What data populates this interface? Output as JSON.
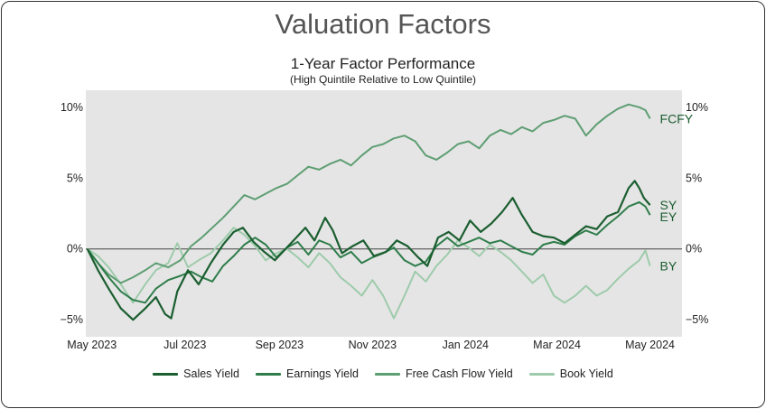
{
  "page": {
    "title": "Valuation Factors"
  },
  "chart_data": {
    "type": "line",
    "title": "1-Year Factor Performance",
    "subtitle": "(High Quintile Relative to Low Quintile)",
    "xlabel": "",
    "ylabel": "",
    "x_ticks": [
      "May 2023",
      "Jul 2023",
      "Sep 2023",
      "Nov 2023",
      "Jan 2024",
      "Mar 2024",
      "May 2024"
    ],
    "y_ticks_left": [
      "10%",
      "5%",
      "0%",
      "−5%"
    ],
    "y_ticks_right": [
      "10%",
      "5%",
      "0%",
      "−5%"
    ],
    "y_tick_values": [
      10,
      5,
      0,
      -5
    ],
    "ylim": [
      -6.2,
      11.2
    ],
    "xlim": [
      "2023-04-27",
      "2024-05-22"
    ],
    "grid": false,
    "background": "#e5e5e5",
    "zero_line": true,
    "legend_position": "bottom",
    "series": [
      {
        "name": "Sales Yield",
        "end_label": "SY",
        "color": "#1b5e30",
        "width": 2.2,
        "points": [
          [
            "2023-04-28",
            0
          ],
          [
            "2023-05-05",
            -1.5
          ],
          [
            "2023-05-12",
            -2.8
          ],
          [
            "2023-05-20",
            -4.2
          ],
          [
            "2023-05-28",
            -5.0
          ],
          [
            "2023-06-05",
            -4.2
          ],
          [
            "2023-06-12",
            -3.4
          ],
          [
            "2023-06-18",
            -4.6
          ],
          [
            "2023-06-22",
            -4.9
          ],
          [
            "2023-06-26",
            -3.0
          ],
          [
            "2023-07-03",
            -1.5
          ],
          [
            "2023-07-10",
            -2.5
          ],
          [
            "2023-07-18",
            -1.0
          ],
          [
            "2023-07-26",
            0.3
          ],
          [
            "2023-08-02",
            1.2
          ],
          [
            "2023-08-08",
            1.5
          ],
          [
            "2023-08-15",
            0.5
          ],
          [
            "2023-08-22",
            -0.2
          ],
          [
            "2023-08-29",
            -0.8
          ],
          [
            "2023-09-05",
            0
          ],
          [
            "2023-09-12",
            0.8
          ],
          [
            "2023-09-18",
            1.5
          ],
          [
            "2023-09-24",
            0.6
          ],
          [
            "2023-10-01",
            2.2
          ],
          [
            "2023-10-06",
            1.3
          ],
          [
            "2023-10-12",
            -0.3
          ],
          [
            "2023-10-19",
            0.2
          ],
          [
            "2023-10-26",
            0.6
          ],
          [
            "2023-11-02",
            -0.5
          ],
          [
            "2023-11-10",
            -0.2
          ],
          [
            "2023-11-17",
            0.6
          ],
          [
            "2023-11-24",
            0.2
          ],
          [
            "2023-12-01",
            -0.6
          ],
          [
            "2023-12-07",
            -1.2
          ],
          [
            "2023-12-14",
            0.8
          ],
          [
            "2023-12-21",
            1.2
          ],
          [
            "2023-12-28",
            0.6
          ],
          [
            "2024-01-04",
            2.0
          ],
          [
            "2024-01-11",
            1.2
          ],
          [
            "2024-01-18",
            1.8
          ],
          [
            "2024-01-25",
            2.6
          ],
          [
            "2024-02-01",
            3.6
          ],
          [
            "2024-02-07",
            2.4
          ],
          [
            "2024-02-14",
            1.2
          ],
          [
            "2024-02-21",
            0.9
          ],
          [
            "2024-02-28",
            0.8
          ],
          [
            "2024-03-06",
            0.4
          ],
          [
            "2024-03-13",
            1.0
          ],
          [
            "2024-03-20",
            1.6
          ],
          [
            "2024-03-27",
            1.4
          ],
          [
            "2024-04-03",
            2.3
          ],
          [
            "2024-04-10",
            2.6
          ],
          [
            "2024-04-17",
            4.3
          ],
          [
            "2024-04-21",
            4.8
          ],
          [
            "2024-04-24",
            4.3
          ],
          [
            "2024-04-27",
            3.6
          ],
          [
            "2024-05-01",
            3.1
          ]
        ]
      },
      {
        "name": "Earnings Yield",
        "end_label": "EY",
        "color": "#2e7d4a",
        "width": 2.0,
        "points": [
          [
            "2023-04-28",
            0
          ],
          [
            "2023-05-05",
            -1.0
          ],
          [
            "2023-05-12",
            -2.0
          ],
          [
            "2023-05-20",
            -3.0
          ],
          [
            "2023-05-28",
            -3.6
          ],
          [
            "2023-06-05",
            -3.8
          ],
          [
            "2023-06-12",
            -2.8
          ],
          [
            "2023-06-20",
            -2.2
          ],
          [
            "2023-06-28",
            -1.9
          ],
          [
            "2023-07-05",
            -1.6
          ],
          [
            "2023-07-12",
            -2.0
          ],
          [
            "2023-07-19",
            -2.3
          ],
          [
            "2023-07-26",
            -1.2
          ],
          [
            "2023-08-02",
            -0.5
          ],
          [
            "2023-08-09",
            0.3
          ],
          [
            "2023-08-16",
            0.8
          ],
          [
            "2023-08-23",
            0.3
          ],
          [
            "2023-08-30",
            -0.6
          ],
          [
            "2023-09-06",
            0.1
          ],
          [
            "2023-09-13",
            0.5
          ],
          [
            "2023-09-20",
            -0.4
          ],
          [
            "2023-09-27",
            0.6
          ],
          [
            "2023-10-04",
            0.3
          ],
          [
            "2023-10-11",
            -0.6
          ],
          [
            "2023-10-18",
            -0.2
          ],
          [
            "2023-10-25",
            -1.0
          ],
          [
            "2023-11-01",
            -0.6
          ],
          [
            "2023-11-08",
            -0.3
          ],
          [
            "2023-11-15",
            0.1
          ],
          [
            "2023-11-22",
            -0.8
          ],
          [
            "2023-11-29",
            -1.2
          ],
          [
            "2023-12-06",
            -0.9
          ],
          [
            "2023-12-13",
            0.2
          ],
          [
            "2023-12-20",
            0.8
          ],
          [
            "2023-12-27",
            0.2
          ],
          [
            "2024-01-03",
            0.5
          ],
          [
            "2024-01-10",
            0.8
          ],
          [
            "2024-01-17",
            0.4
          ],
          [
            "2024-01-24",
            0.6
          ],
          [
            "2024-01-31",
            0.2
          ],
          [
            "2024-02-07",
            -0.2
          ],
          [
            "2024-02-14",
            -0.4
          ],
          [
            "2024-02-21",
            0.3
          ],
          [
            "2024-02-28",
            0.5
          ],
          [
            "2024-03-06",
            0.3
          ],
          [
            "2024-03-13",
            0.9
          ],
          [
            "2024-03-20",
            1.3
          ],
          [
            "2024-03-27",
            1.0
          ],
          [
            "2024-04-03",
            1.7
          ],
          [
            "2024-04-10",
            2.3
          ],
          [
            "2024-04-17",
            3.0
          ],
          [
            "2024-04-24",
            3.3
          ],
          [
            "2024-04-28",
            3.0
          ],
          [
            "2024-05-01",
            2.4
          ]
        ]
      },
      {
        "name": "Free Cash Flow Yield",
        "end_label": "FCFY",
        "color": "#5e9e73",
        "width": 2.0,
        "points": [
          [
            "2023-04-28",
            0
          ],
          [
            "2023-05-05",
            -1.0
          ],
          [
            "2023-05-12",
            -1.8
          ],
          [
            "2023-05-20",
            -2.4
          ],
          [
            "2023-05-28",
            -2.0
          ],
          [
            "2023-06-05",
            -1.5
          ],
          [
            "2023-06-12",
            -1.0
          ],
          [
            "2023-06-20",
            -1.3
          ],
          [
            "2023-06-28",
            -0.8
          ],
          [
            "2023-07-05",
            0.2
          ],
          [
            "2023-07-12",
            0.8
          ],
          [
            "2023-07-19",
            1.5
          ],
          [
            "2023-07-26",
            2.2
          ],
          [
            "2023-08-02",
            3.0
          ],
          [
            "2023-08-09",
            3.8
          ],
          [
            "2023-08-16",
            3.5
          ],
          [
            "2023-08-23",
            3.9
          ],
          [
            "2023-08-30",
            4.3
          ],
          [
            "2023-09-06",
            4.6
          ],
          [
            "2023-09-13",
            5.2
          ],
          [
            "2023-09-20",
            5.8
          ],
          [
            "2023-09-27",
            5.6
          ],
          [
            "2023-10-04",
            6.0
          ],
          [
            "2023-10-11",
            6.3
          ],
          [
            "2023-10-18",
            5.9
          ],
          [
            "2023-10-25",
            6.6
          ],
          [
            "2023-11-01",
            7.2
          ],
          [
            "2023-11-08",
            7.4
          ],
          [
            "2023-11-15",
            7.8
          ],
          [
            "2023-11-22",
            8.0
          ],
          [
            "2023-11-29",
            7.6
          ],
          [
            "2023-12-06",
            6.6
          ],
          [
            "2023-12-13",
            6.3
          ],
          [
            "2023-12-20",
            6.8
          ],
          [
            "2023-12-27",
            7.4
          ],
          [
            "2024-01-03",
            7.6
          ],
          [
            "2024-01-10",
            7.1
          ],
          [
            "2024-01-17",
            8.0
          ],
          [
            "2024-01-24",
            8.4
          ],
          [
            "2024-01-31",
            8.1
          ],
          [
            "2024-02-07",
            8.6
          ],
          [
            "2024-02-14",
            8.3
          ],
          [
            "2024-02-21",
            8.9
          ],
          [
            "2024-02-28",
            9.1
          ],
          [
            "2024-03-06",
            9.4
          ],
          [
            "2024-03-13",
            9.2
          ],
          [
            "2024-03-20",
            8.0
          ],
          [
            "2024-03-27",
            8.8
          ],
          [
            "2024-04-03",
            9.4
          ],
          [
            "2024-04-10",
            9.9
          ],
          [
            "2024-04-17",
            10.2
          ],
          [
            "2024-04-24",
            10.0
          ],
          [
            "2024-04-28",
            9.8
          ],
          [
            "2024-05-01",
            9.2
          ]
        ]
      },
      {
        "name": "Book Yield",
        "end_label": "BY",
        "color": "#9ecbab",
        "width": 2.0,
        "points": [
          [
            "2023-04-28",
            0
          ],
          [
            "2023-05-05",
            -0.5
          ],
          [
            "2023-05-12",
            -1.3
          ],
          [
            "2023-05-20",
            -2.5
          ],
          [
            "2023-05-28",
            -3.8
          ],
          [
            "2023-06-05",
            -2.5
          ],
          [
            "2023-06-12",
            -1.5
          ],
          [
            "2023-06-20",
            -1.0
          ],
          [
            "2023-06-26",
            0.4
          ],
          [
            "2023-07-03",
            -1.3
          ],
          [
            "2023-07-10",
            -0.8
          ],
          [
            "2023-07-18",
            -0.3
          ],
          [
            "2023-07-26",
            0.6
          ],
          [
            "2023-08-02",
            1.5
          ],
          [
            "2023-08-09",
            1.0
          ],
          [
            "2023-08-16",
            0.2
          ],
          [
            "2023-08-23",
            -0.8
          ],
          [
            "2023-08-30",
            -0.3
          ],
          [
            "2023-09-06",
            0
          ],
          [
            "2023-09-13",
            -0.6
          ],
          [
            "2023-09-20",
            -1.3
          ],
          [
            "2023-09-27",
            -0.3
          ],
          [
            "2023-10-04",
            -1.0
          ],
          [
            "2023-10-11",
            -2.0
          ],
          [
            "2023-10-18",
            -2.6
          ],
          [
            "2023-10-25",
            -3.3
          ],
          [
            "2023-11-01",
            -2.2
          ],
          [
            "2023-11-08",
            -3.3
          ],
          [
            "2023-11-15",
            -4.9
          ],
          [
            "2023-11-22",
            -3.3
          ],
          [
            "2023-11-29",
            -1.6
          ],
          [
            "2023-12-06",
            -2.3
          ],
          [
            "2023-12-13",
            -1.2
          ],
          [
            "2023-12-20",
            -0.4
          ],
          [
            "2023-12-27",
            0.6
          ],
          [
            "2024-01-03",
            0.1
          ],
          [
            "2024-01-10",
            -0.5
          ],
          [
            "2024-01-17",
            0.3
          ],
          [
            "2024-01-24",
            -0.2
          ],
          [
            "2024-01-31",
            -0.8
          ],
          [
            "2024-02-07",
            -1.6
          ],
          [
            "2024-02-14",
            -2.4
          ],
          [
            "2024-02-21",
            -1.8
          ],
          [
            "2024-02-28",
            -3.3
          ],
          [
            "2024-03-06",
            -3.8
          ],
          [
            "2024-03-13",
            -3.3
          ],
          [
            "2024-03-20",
            -2.6
          ],
          [
            "2024-03-27",
            -3.3
          ],
          [
            "2024-04-03",
            -2.9
          ],
          [
            "2024-04-10",
            -2.1
          ],
          [
            "2024-04-17",
            -1.4
          ],
          [
            "2024-04-24",
            -0.8
          ],
          [
            "2024-04-28",
            -0.1
          ],
          [
            "2024-05-01",
            -1.2
          ]
        ]
      }
    ]
  }
}
